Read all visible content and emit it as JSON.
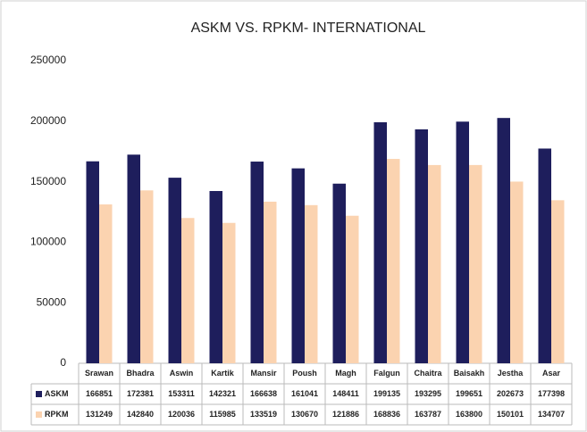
{
  "chart_data": {
    "type": "bar",
    "title": "ASKM VS. RPKM- INTERNATIONAL",
    "categories": [
      "Srawan",
      "Bhadra",
      "Aswin",
      "Kartik",
      "Mansir",
      "Poush",
      "Magh",
      "Falgun",
      "Chaitra",
      "Baisakh",
      "Jestha",
      "Asar"
    ],
    "series": [
      {
        "name": "ASKM",
        "color": "#1e1e5c",
        "values": [
          166851,
          172381,
          153311,
          142321,
          166638,
          161041,
          148411,
          199135,
          193295,
          199651,
          202673,
          177398
        ]
      },
      {
        "name": "RPKM",
        "color": "#fbd3b0",
        "values": [
          131249,
          142840,
          120036,
          115985,
          133519,
          130670,
          121886,
          168836,
          163787,
          163800,
          150101,
          134707
        ]
      }
    ],
    "ylim": [
      0,
      250000
    ],
    "yticks": [
      0,
      50000,
      100000,
      150000,
      200000,
      250000
    ],
    "grid": false
  }
}
